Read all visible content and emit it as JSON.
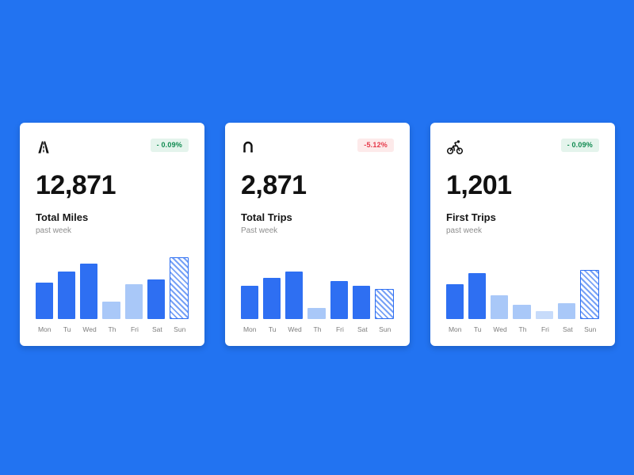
{
  "theme": {
    "page_background": "#2273f1",
    "card_background": "#ffffff",
    "bar_primary": "#2e6ff2",
    "bar_light": "#a9c8f8",
    "badge_positive_text": "#0f8a50",
    "badge_positive_bg": "#e4f4ec",
    "badge_negative_text": "#e6394a",
    "badge_negative_bg": "#fdeaea"
  },
  "chart_data": [
    {
      "type": "bar",
      "icon": "road-icon",
      "delta_badge": "- 0.09%",
      "delta_direction": "positive",
      "value": "12,871",
      "title": "Total Miles",
      "subtitle": "past week",
      "categories": [
        "Mon",
        "Tu",
        "Wed",
        "Th",
        "Fri",
        "Sat",
        "Sun"
      ],
      "values": [
        46,
        60,
        70,
        22,
        44,
        50,
        78
      ],
      "bar_styles": [
        "primary",
        "primary",
        "primary",
        "light",
        "light",
        "primary",
        "hatched"
      ],
      "ylim": [
        0,
        80
      ],
      "legend": "none",
      "grid": false
    },
    {
      "type": "bar",
      "icon": "route-icon",
      "delta_badge": "-5.12%",
      "delta_direction": "negative",
      "value": "2,871",
      "title": "Total Trips",
      "subtitle": "Past week",
      "categories": [
        "Mon",
        "Tu",
        "Wed",
        "Th",
        "Fri",
        "Sat",
        "Sun"
      ],
      "values": [
        42,
        52,
        60,
        14,
        48,
        42,
        38
      ],
      "bar_styles": [
        "primary",
        "primary",
        "primary",
        "light",
        "primary",
        "primary",
        "hatched"
      ],
      "ylim": [
        0,
        80
      ],
      "legend": "none",
      "grid": false
    },
    {
      "type": "bar",
      "icon": "cyclist-icon",
      "delta_badge": "- 0.09%",
      "delta_direction": "positive",
      "value": "1,201",
      "title": "First Trips",
      "subtitle": "past week",
      "categories": [
        "Mon",
        "Tu",
        "Wed",
        "Th",
        "Fri",
        "Sat",
        "Sun"
      ],
      "values": [
        44,
        58,
        30,
        18,
        10,
        20,
        62
      ],
      "bar_styles": [
        "primary",
        "primary",
        "light",
        "light",
        "lighter",
        "light",
        "hatched"
      ],
      "ylim": [
        0,
        80
      ],
      "legend": "none",
      "grid": false
    }
  ]
}
